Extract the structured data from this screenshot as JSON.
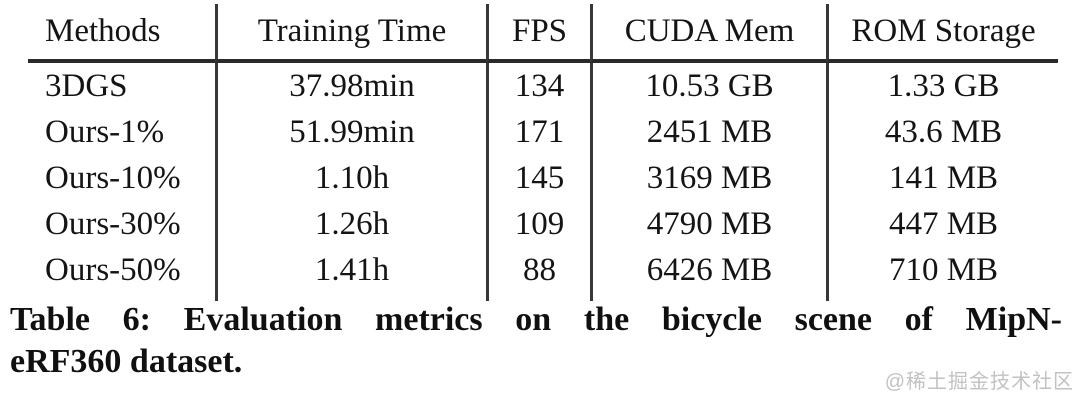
{
  "page": {
    "background": "#ffffff",
    "text_color": "#141414",
    "rule_color": "#2a2a2a",
    "watermark_color": "#c2c2c2"
  },
  "table": {
    "columns": [
      "Methods",
      "Training Time",
      "FPS",
      "CUDA Mem",
      "ROM Storage"
    ],
    "rows": [
      {
        "cells": [
          "3DGS",
          "37.98min",
          "134",
          "10.53 GB",
          "1.33 GB"
        ]
      },
      {
        "cells": [
          "Ours-1%",
          "51.99min",
          "171",
          "2451 MB",
          "43.6 MB"
        ]
      },
      {
        "cells": [
          "Ours-10%",
          "1.10h",
          "145",
          "3169 MB",
          "141 MB"
        ]
      },
      {
        "cells": [
          "Ours-30%",
          "1.26h",
          "109",
          "4790 MB",
          "447 MB"
        ]
      },
      {
        "cells": [
          "Ours-50%",
          "1.41h",
          "88",
          "6426 MB",
          "710 MB"
        ]
      }
    ]
  },
  "caption": {
    "line1": "Table 6: Evaluation metrics on the bicycle scene of MipN-",
    "line2": "eRF360 dataset."
  },
  "watermark": "@稀土掘金技术社区",
  "chart_data": {
    "type": "table",
    "title": "Table 6: Evaluation metrics on the bicycle scene of MipNeRF360 dataset.",
    "columns": [
      "Methods",
      "Training Time",
      "FPS",
      "CUDA Mem",
      "ROM Storage"
    ],
    "rows": [
      [
        "3DGS",
        "37.98min",
        "134",
        "10.53 GB",
        "1.33 GB"
      ],
      [
        "Ours-1%",
        "51.99min",
        "171",
        "2451 MB",
        "43.6 MB"
      ],
      [
        "Ours-10%",
        "1.10h",
        "145",
        "3169 MB",
        "141 MB"
      ],
      [
        "Ours-30%",
        "1.26h",
        "109",
        "4790 MB",
        "447 MB"
      ],
      [
        "Ours-50%",
        "1.41h",
        "88",
        "6426 MB",
        "710 MB"
      ]
    ]
  }
}
